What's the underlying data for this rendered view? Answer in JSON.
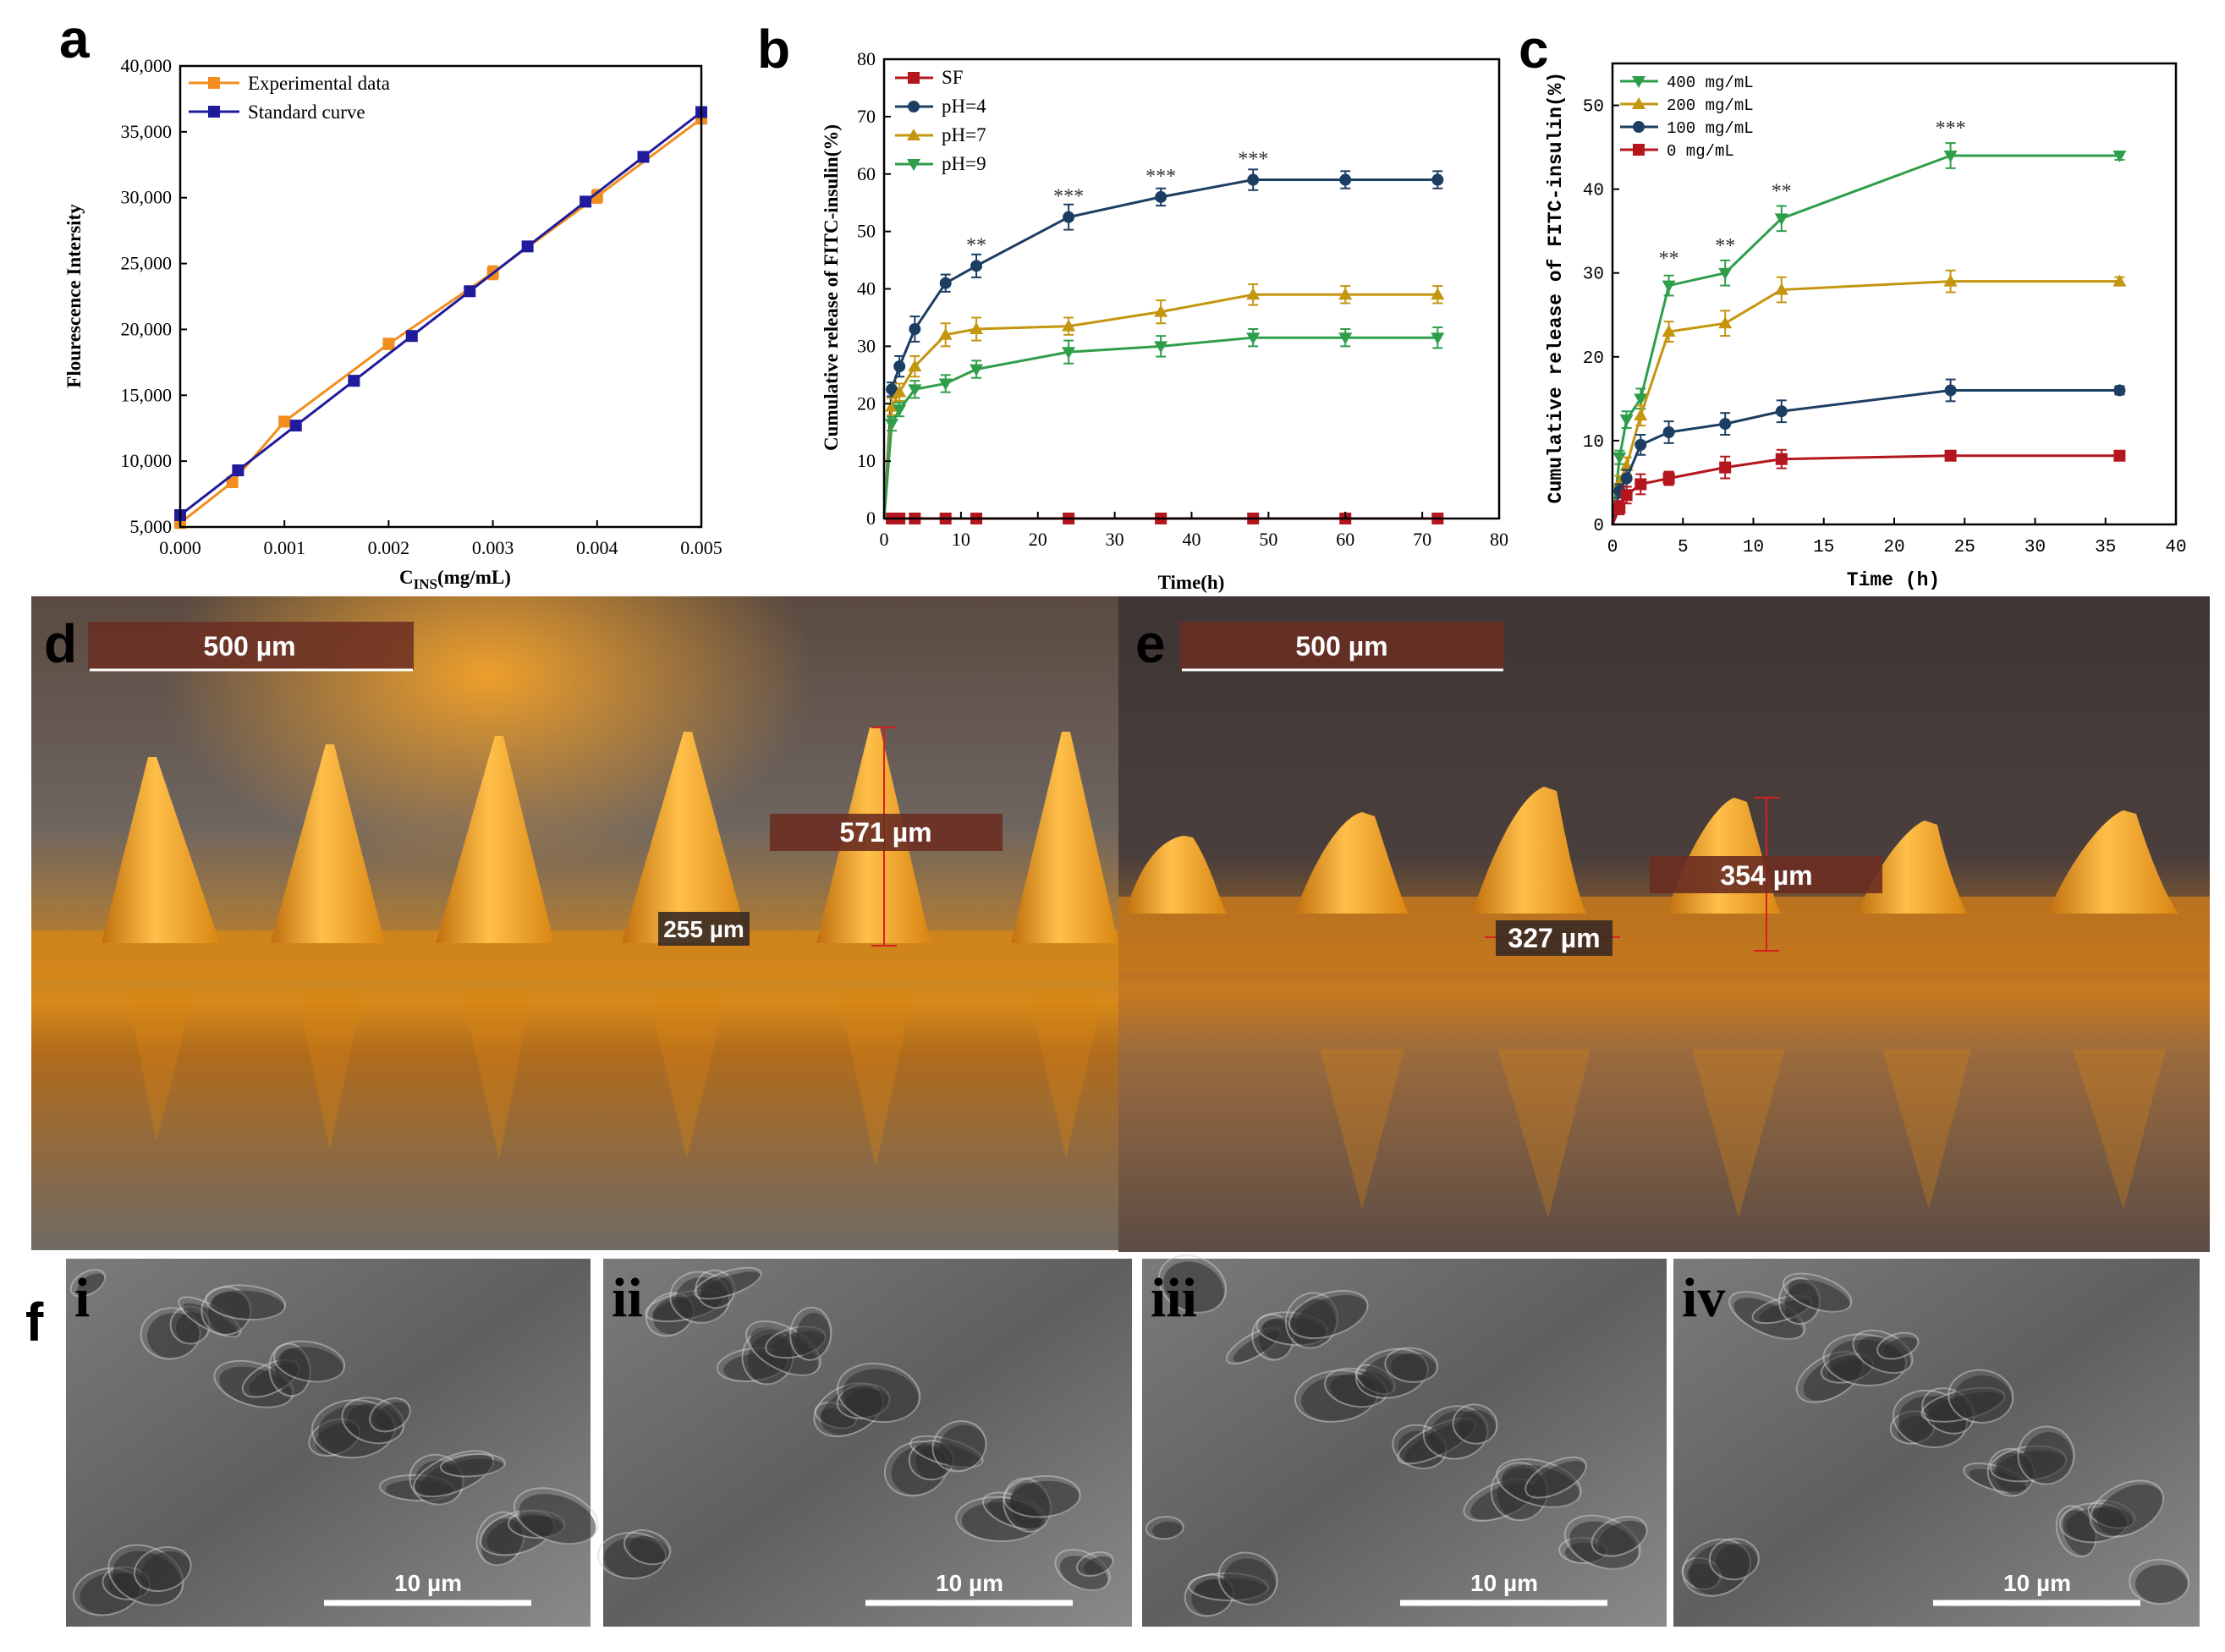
{
  "panels": {
    "a": "a",
    "b": "b",
    "c": "c",
    "d": "d",
    "e": "e",
    "f": "f"
  },
  "chart_data": [
    {
      "id": "a",
      "type": "line",
      "title": "",
      "xlabel_main": "C",
      "xlabel_sub": "INS",
      "xlabel_tail": "(mg/mL)",
      "ylabel": "Flourescence Intersity",
      "xlim": [
        0,
        0.005
      ],
      "ylim": [
        5000,
        40000
      ],
      "xticks": [
        0.0,
        0.001,
        0.002,
        0.003,
        0.004,
        0.005
      ],
      "xtick_labels": [
        "0.000",
        "0.001",
        "0.002",
        "0.003",
        "0.004",
        "0.005"
      ],
      "yticks": [
        5000,
        10000,
        15000,
        20000,
        25000,
        30000,
        35000,
        40000
      ],
      "ytick_labels": [
        "5,000",
        "10,000",
        "15,000",
        "20,000",
        "25,000",
        "30,000",
        "35,000",
        "40,000"
      ],
      "series": [
        {
          "name": "Experimental data",
          "color": "#f28e1e",
          "marker": "square",
          "x": [
            0.0,
            0.0005,
            0.001,
            0.002,
            0.003,
            0.004,
            0.005
          ],
          "y": [
            5300,
            8400,
            13000,
            18900,
            24300,
            30100,
            36000
          ],
          "err": [
            200,
            300,
            300,
            400,
            500,
            500,
            300
          ]
        },
        {
          "name": "Standard curve",
          "color": "#1f1b9c",
          "marker": "square",
          "x": [
            0.0,
            0.000555,
            0.00111,
            0.001667,
            0.002222,
            0.002778,
            0.003333,
            0.003889,
            0.004444,
            0.005
          ],
          "y": [
            5900,
            9300,
            12700,
            16100,
            19500,
            22900,
            26300,
            29700,
            33100,
            36500
          ],
          "err": []
        }
      ],
      "legend_position": "top-left"
    },
    {
      "id": "b",
      "type": "line",
      "title": "",
      "xlabel": "Time(h)",
      "ylabel": "Cumulative release of FITC-insulin(%)",
      "xlim": [
        0,
        80
      ],
      "ylim": [
        0,
        80
      ],
      "xticks": [
        0,
        10,
        20,
        30,
        40,
        50,
        60,
        70,
        80
      ],
      "yticks": [
        0,
        10,
        20,
        30,
        40,
        50,
        60,
        70,
        80
      ],
      "series": [
        {
          "name": "SF",
          "color": "#b3161c",
          "marker": "square",
          "x": [
            0,
            1,
            2,
            4,
            8,
            12,
            24,
            36,
            48,
            60,
            72
          ],
          "y": [
            0,
            0,
            0,
            0,
            0,
            0,
            0,
            0,
            0,
            0,
            0
          ],
          "err": [
            0,
            0,
            0,
            0,
            0,
            0,
            0,
            0,
            0,
            0,
            0
          ]
        },
        {
          "name": "pH=4",
          "color": "#1d3e63",
          "marker": "circle",
          "x": [
            0,
            1,
            2,
            4,
            8,
            12,
            24,
            36,
            48,
            60,
            72
          ],
          "y": [
            0,
            22.5,
            26.5,
            33,
            41,
            44,
            52.5,
            56,
            59,
            59,
            59
          ],
          "err": [
            0,
            1.2,
            1.8,
            2.2,
            1.5,
            2,
            2.2,
            1.5,
            1.8,
            1.5,
            1.5
          ]
        },
        {
          "name": "pH=7",
          "color": "#c4950f",
          "marker": "triangle-up",
          "x": [
            0,
            1,
            2,
            4,
            8,
            12,
            24,
            36,
            48,
            60,
            72
          ],
          "y": [
            0,
            19.5,
            22,
            26.5,
            32,
            33,
            33.5,
            36,
            39,
            39,
            39
          ],
          "err": [
            0,
            1.5,
            1.5,
            1.8,
            2,
            2,
            1.5,
            2,
            1.8,
            1.5,
            1.5
          ]
        },
        {
          "name": "pH=9",
          "color": "#2e9e4a",
          "marker": "triangle-down",
          "x": [
            0,
            1,
            2,
            4,
            8,
            12,
            24,
            36,
            48,
            60,
            72
          ],
          "y": [
            0,
            16.5,
            19,
            22.5,
            23.5,
            26,
            29,
            30,
            31.5,
            31.5,
            31.5
          ],
          "err": [
            0,
            1.2,
            1.2,
            1.5,
            1.5,
            1.5,
            2,
            1.8,
            1.5,
            1.5,
            1.8
          ]
        }
      ],
      "annotations": [
        {
          "x": 12,
          "y": 46.5,
          "text": "**"
        },
        {
          "x": 24,
          "y": 55,
          "text": "***"
        },
        {
          "x": 36,
          "y": 58.5,
          "text": "***"
        },
        {
          "x": 48,
          "y": 61.5,
          "text": "***"
        }
      ],
      "legend_position": "top-left"
    },
    {
      "id": "c",
      "type": "line",
      "title": "",
      "xlabel": "Time (h)",
      "ylabel": "Cumulative release of FITC-insulin(%)",
      "xlim": [
        0,
        40
      ],
      "ylim": [
        0,
        55
      ],
      "xticks": [
        0,
        5,
        10,
        15,
        20,
        25,
        30,
        35,
        40
      ],
      "yticks": [
        0,
        10,
        20,
        30,
        40,
        50
      ],
      "series": [
        {
          "name": "400 mg/mL",
          "color": "#2e9e4a",
          "marker": "triangle-down",
          "x": [
            0,
            0.5,
            1,
            2,
            4,
            8,
            12,
            24,
            36
          ],
          "y": [
            0,
            8,
            12.5,
            15,
            28.5,
            30,
            36.5,
            44,
            44
          ],
          "err": [
            0,
            0.8,
            1,
            1.2,
            1.2,
            1.5,
            1.5,
            1.5,
            0.5
          ]
        },
        {
          "name": "200 mg/mL",
          "color": "#c4950f",
          "marker": "triangle-up",
          "x": [
            0,
            0.5,
            1,
            2,
            4,
            8,
            12,
            24,
            36
          ],
          "y": [
            0,
            5,
            7,
            13,
            23,
            24,
            28,
            29,
            29
          ],
          "err": [
            0,
            0.8,
            1,
            1.2,
            1.2,
            1.5,
            1.5,
            1.3,
            0.5
          ]
        },
        {
          "name": "100 mg/mL",
          "color": "#1d3e63",
          "marker": "circle",
          "x": [
            0,
            0.5,
            1,
            2,
            4,
            8,
            12,
            24,
            36
          ],
          "y": [
            0,
            4,
            5.5,
            9.5,
            11,
            12,
            13.5,
            16,
            16
          ],
          "err": [
            0,
            0.8,
            1,
            1.2,
            1.3,
            1.3,
            1.3,
            1.3,
            0.5
          ]
        },
        {
          "name": "0 mg/mL",
          "color": "#b3161c",
          "marker": "square",
          "x": [
            0,
            0.5,
            1,
            2,
            4,
            8,
            12,
            24,
            36
          ],
          "y": [
            0,
            2,
            3.5,
            4.8,
            5.5,
            6.8,
            7.8,
            8.2,
            8.2
          ],
          "err": [
            0,
            0.8,
            1,
            1.2,
            0.8,
            1.3,
            1.1,
            0.5,
            0.5
          ]
        }
      ],
      "annotations": [
        {
          "x": 4,
          "y": 31,
          "text": "**"
        },
        {
          "x": 8,
          "y": 32.5,
          "text": "**"
        },
        {
          "x": 12,
          "y": 39,
          "text": "**"
        },
        {
          "x": 24,
          "y": 46.5,
          "text": "***"
        }
      ],
      "legend_position": "top-left"
    }
  ],
  "photos": {
    "d": {
      "scale_bar": "500 µm",
      "height_label": "571 µm",
      "width_label": "255 µm"
    },
    "e": {
      "scale_bar": "500 µm",
      "height_label": "354 µm",
      "width_label": "327 µm"
    }
  },
  "sem": [
    {
      "label": "i",
      "scale": "10 µm"
    },
    {
      "label": "ii",
      "scale": "10 µm"
    },
    {
      "label": "iii",
      "scale": "10 µm"
    },
    {
      "label": "iv",
      "scale": "10 µm"
    }
  ]
}
